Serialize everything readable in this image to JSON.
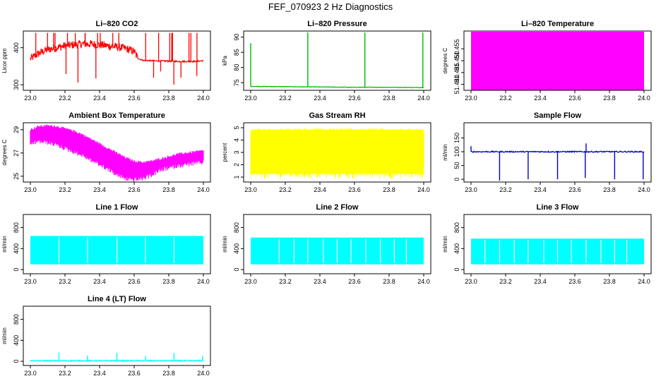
{
  "figure": {
    "title": "FEF_070923  2 Hz Diagnostics"
  },
  "chart_data": [
    {
      "type": "line",
      "title": "Li–820 CO2",
      "xlabel": "",
      "ylabel": "Licor ppm",
      "color": "#ff0000",
      "xlim": [
        23.0,
        24.0
      ],
      "ylim": [
        285,
        445
      ],
      "xticks": [
        "23.0",
        "23.2",
        "23.4",
        "23.6",
        "23.8",
        "24.0"
      ],
      "yticks": [
        {
          "v": 300,
          "t": "300"
        },
        {
          "v": 400,
          "t": "400"
        }
      ],
      "pattern": "co2",
      "series": [
        {
          "x": [
            23.0,
            23.05,
            23.1,
            23.15,
            23.2,
            23.25,
            23.3,
            23.35,
            23.4,
            23.45,
            23.5,
            23.55,
            23.6,
            23.62,
            23.65,
            23.7,
            23.75,
            23.8,
            23.85,
            23.9,
            23.95,
            24.0
          ],
          "y": [
            370,
            385,
            395,
            400,
            405,
            408,
            410,
            410,
            408,
            405,
            402,
            398,
            390,
            372,
            366,
            365,
            364,
            364,
            363,
            363,
            363,
            365
          ]
        }
      ]
    },
    {
      "type": "line",
      "title": "Li–820 Pressure",
      "xlabel": "",
      "ylabel": "kPa",
      "color": "#00bb00",
      "xlim": [
        23.0,
        24.0
      ],
      "ylim": [
        72.5,
        92
      ],
      "xticks": [
        "23.0",
        "23.2",
        "23.4",
        "23.6",
        "23.8",
        "24.0"
      ],
      "yticks": [
        {
          "v": 75,
          "t": "75"
        },
        {
          "v": 80,
          "t": "80"
        },
        {
          "v": 85,
          "t": "85"
        },
        {
          "v": 90,
          "t": "90"
        }
      ],
      "pattern": "pressure",
      "series": [
        {
          "x": [
            23.0,
            23.2,
            23.4,
            23.6,
            23.8,
            24.0
          ],
          "y": [
            73.8,
            73.7,
            73.6,
            73.5,
            73.5,
            73.4
          ]
        }
      ],
      "spikes": [
        {
          "x": 23.0,
          "y": 88
        },
        {
          "x": 23.33,
          "y": 91.5
        },
        {
          "x": 23.66,
          "y": 91.5
        },
        {
          "x": 23.995,
          "y": 91.5
        }
      ]
    },
    {
      "type": "area",
      "title": "Li–820 Temperature",
      "xlabel": "",
      "ylabel": "degrees C",
      "color": "#ff00ff",
      "xlim": [
        23.0,
        24.0
      ],
      "ylim": [
        51.4375,
        51.4625
      ],
      "xticks": [
        "23.0",
        "23.2",
        "23.4",
        "23.6",
        "23.8",
        "24.0"
      ],
      "yticks": [
        {
          "v": 51.44,
          "t": "51.440"
        },
        {
          "v": 51.445,
          "t": "51.445"
        },
        {
          "v": 51.45,
          "t": "51.450"
        },
        {
          "v": 51.455,
          "t": "51.455"
        }
      ],
      "pattern": "block",
      "series": [
        {
          "x": [
            23.0,
            24.0
          ],
          "min": [
            51.4375,
            51.4375
          ],
          "max": [
            51.4622,
            51.4622
          ]
        }
      ]
    },
    {
      "type": "line",
      "title": "Ambient Box Temperature",
      "xlabel": "",
      "ylabel": "degrees C",
      "color": "#ff00ff",
      "xlim": [
        23.0,
        24.0
      ],
      "ylim": [
        24.5,
        29.6
      ],
      "xticks": [
        "23.0",
        "23.2",
        "23.4",
        "23.6",
        "23.8",
        "24.0"
      ],
      "yticks": [
        {
          "v": 25,
          "t": "25"
        },
        {
          "v": 27,
          "t": "27"
        },
        {
          "v": 29,
          "t": "29"
        }
      ],
      "pattern": "band",
      "series": [
        {
          "x": [
            23.0,
            23.05,
            23.1,
            23.15,
            23.2,
            23.25,
            23.3,
            23.35,
            23.4,
            23.45,
            23.5,
            23.55,
            23.6,
            23.65,
            23.7,
            23.75,
            23.8,
            23.85,
            23.9,
            23.95,
            24.0
          ],
          "max": [
            29.0,
            29.3,
            29.35,
            29.3,
            29.1,
            28.9,
            28.6,
            28.2,
            27.8,
            27.4,
            27.0,
            26.6,
            26.3,
            26.2,
            26.3,
            26.5,
            26.7,
            26.9,
            27.0,
            27.1,
            27.2
          ],
          "min": [
            28.0,
            28.2,
            28.1,
            27.9,
            27.6,
            27.3,
            27.0,
            26.6,
            26.2,
            25.8,
            25.3,
            25.0,
            24.9,
            25.0,
            25.3,
            25.7,
            25.9,
            26.1,
            26.2,
            26.3,
            26.4
          ]
        }
      ]
    },
    {
      "type": "area",
      "title": "Gas Stream RH",
      "xlabel": "",
      "ylabel": "percent",
      "color": "#ffff00",
      "xlim": [
        23.0,
        24.0
      ],
      "ylim": [
        0.6,
        5.4
      ],
      "xticks": [
        "23.0",
        "23.2",
        "23.4",
        "23.6",
        "23.8",
        "24.0"
      ],
      "yticks": [
        {
          "v": 1,
          "t": "1"
        },
        {
          "v": 2,
          "t": "2"
        },
        {
          "v": 3,
          "t": "3"
        },
        {
          "v": 4,
          "t": "4"
        },
        {
          "v": 5,
          "t": "5"
        }
      ],
      "pattern": "noise",
      "series": [
        {
          "x": [
            23.0,
            24.0
          ],
          "min": [
            0.85,
            0.85
          ],
          "max": [
            5.0,
            5.0
          ]
        }
      ]
    },
    {
      "type": "line",
      "title": "Sample Flow",
      "xlabel": "",
      "ylabel": "ml/min",
      "color": "#0000cc",
      "xlim": [
        23.0,
        24.0
      ],
      "ylim": [
        -10,
        205
      ],
      "xticks": [
        "23.0",
        "23.2",
        "23.4",
        "23.6",
        "23.8",
        "24.0"
      ],
      "yticks": [
        {
          "v": 0,
          "t": "0"
        },
        {
          "v": 50,
          "t": "50"
        },
        {
          "v": 100,
          "t": "100"
        },
        {
          "v": 150,
          "t": "150"
        }
      ],
      "pattern": "flat",
      "series": [
        {
          "x": [
            23.0,
            24.0
          ],
          "y": [
            100,
            100
          ]
        }
      ],
      "spikes": [
        {
          "x": 23.0,
          "y": 120
        },
        {
          "x": 23.165,
          "y": -5
        },
        {
          "x": 23.33,
          "y": 0
        },
        {
          "x": 23.5,
          "y": 0
        },
        {
          "x": 23.66,
          "y": 5
        },
        {
          "x": 23.665,
          "y": 130
        },
        {
          "x": 23.83,
          "y": 0
        },
        {
          "x": 23.995,
          "y": 0
        }
      ]
    },
    {
      "type": "area",
      "title": "Line 1 Flow",
      "xlabel": "",
      "ylabel": "ml/min",
      "color": "#00ffff",
      "xlim": [
        23.0,
        24.0
      ],
      "ylim": [
        -80,
        1050
      ],
      "xticks": [
        "23.0",
        "23.2",
        "23.4",
        "23.6",
        "23.8",
        "24.0"
      ],
      "yticks": [
        {
          "v": 0,
          "t": "0"
        },
        {
          "v": 400,
          "t": "400"
        },
        {
          "v": 800,
          "t": "800"
        }
      ],
      "pattern": "block",
      "series": [
        {
          "x": [
            23.0,
            24.0
          ],
          "min": [
            100,
            100
          ],
          "max": [
            640,
            640
          ]
        }
      ],
      "gaps": [
        23.165,
        23.33,
        23.5,
        23.665,
        23.83
      ]
    },
    {
      "type": "area",
      "title": "Line 2 Flow",
      "xlabel": "",
      "ylabel": "ml/min",
      "color": "#00ffff",
      "xlim": [
        23.0,
        24.0
      ],
      "ylim": [
        -80,
        1050
      ],
      "xticks": [
        "23.0",
        "23.2",
        "23.4",
        "23.6",
        "23.8",
        "24.0"
      ],
      "yticks": [
        {
          "v": 0,
          "t": "0"
        },
        {
          "v": 400,
          "t": "400"
        },
        {
          "v": 800,
          "t": "800"
        }
      ],
      "pattern": "block",
      "series": [
        {
          "x": [
            23.0,
            24.0
          ],
          "min": [
            100,
            100
          ],
          "max": [
            610,
            610
          ]
        }
      ],
      "gaps": [
        23.165,
        23.25,
        23.33,
        23.42,
        23.5,
        23.58,
        23.665,
        23.75,
        23.83,
        23.9
      ]
    },
    {
      "type": "area",
      "title": "Line 3 Flow",
      "xlabel": "",
      "ylabel": "ml/min",
      "color": "#00ffff",
      "xlim": [
        23.0,
        24.0
      ],
      "ylim": [
        -80,
        1050
      ],
      "xticks": [
        "23.0",
        "23.2",
        "23.4",
        "23.6",
        "23.8",
        "24.0"
      ],
      "yticks": [
        {
          "v": 0,
          "t": "0"
        },
        {
          "v": 400,
          "t": "400"
        },
        {
          "v": 800,
          "t": "800"
        }
      ],
      "pattern": "block",
      "series": [
        {
          "x": [
            23.0,
            24.0
          ],
          "min": [
            100,
            100
          ],
          "max": [
            590,
            590
          ]
        }
      ],
      "gaps": [
        23.08,
        23.165,
        23.25,
        23.33,
        23.42,
        23.5,
        23.58,
        23.665,
        23.75,
        23.83,
        23.9
      ]
    },
    {
      "type": "line",
      "title": "Line 4 (LT) Flow",
      "xlabel": "",
      "ylabel": "ml/min",
      "color": "#00ffff",
      "xlim": [
        23.0,
        24.0
      ],
      "ylim": [
        -80,
        1050
      ],
      "xticks": [
        "23.0",
        "23.2",
        "23.4",
        "23.6",
        "23.8",
        "24.0"
      ],
      "yticks": [
        {
          "v": 0,
          "t": "0"
        },
        {
          "v": 400,
          "t": "400"
        },
        {
          "v": 800,
          "t": "800"
        }
      ],
      "pattern": "flat",
      "series": [
        {
          "x": [
            23.0,
            24.0
          ],
          "y": [
            10,
            10
          ]
        }
      ],
      "spikes": [
        {
          "x": 23.165,
          "y": 170
        },
        {
          "x": 23.33,
          "y": 110
        },
        {
          "x": 23.5,
          "y": 160
        },
        {
          "x": 23.665,
          "y": 100
        },
        {
          "x": 23.83,
          "y": 160
        },
        {
          "x": 23.995,
          "y": 100
        }
      ]
    }
  ]
}
